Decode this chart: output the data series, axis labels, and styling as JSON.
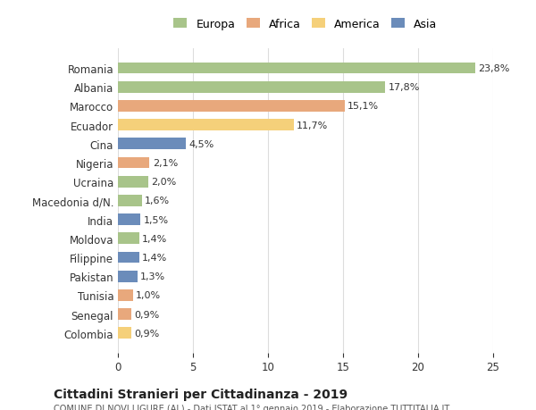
{
  "categories": [
    "Romania",
    "Albania",
    "Marocco",
    "Ecuador",
    "Cina",
    "Nigeria",
    "Ucraina",
    "Macedonia d/N.",
    "India",
    "Moldova",
    "Filippine",
    "Pakistan",
    "Tunisia",
    "Senegal",
    "Colombia"
  ],
  "values": [
    23.8,
    17.8,
    15.1,
    11.7,
    4.5,
    2.1,
    2.0,
    1.6,
    1.5,
    1.4,
    1.4,
    1.3,
    1.0,
    0.9,
    0.9
  ],
  "labels": [
    "23,8%",
    "17,8%",
    "15,1%",
    "11,7%",
    "4,5%",
    "2,1%",
    "2,0%",
    "1,6%",
    "1,5%",
    "1,4%",
    "1,4%",
    "1,3%",
    "1,0%",
    "0,9%",
    "0,9%"
  ],
  "colors": [
    "#a8c48a",
    "#a8c48a",
    "#e8a87c",
    "#f5d07a",
    "#6b8cba",
    "#e8a87c",
    "#a8c48a",
    "#a8c48a",
    "#6b8cba",
    "#a8c48a",
    "#6b8cba",
    "#6b8cba",
    "#e8a87c",
    "#e8a87c",
    "#f5d07a"
  ],
  "legend_labels": [
    "Europa",
    "Africa",
    "America",
    "Asia"
  ],
  "legend_colors": [
    "#a8c48a",
    "#e8a87c",
    "#f5d07a",
    "#6b8cba"
  ],
  "title": "Cittadini Stranieri per Cittadinanza - 2019",
  "subtitle": "COMUNE DI NOVI LIGURE (AL) - Dati ISTAT al 1° gennaio 2019 - Elaborazione TUTTITALIA.IT",
  "xlim": [
    0,
    25
  ],
  "xticks": [
    0,
    5,
    10,
    15,
    20,
    25
  ],
  "background_color": "#ffffff",
  "grid_color": "#dddddd"
}
